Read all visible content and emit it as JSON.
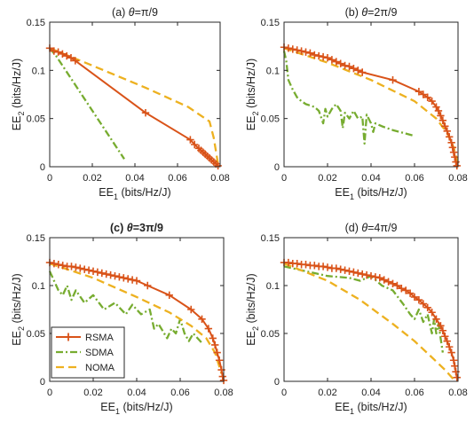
{
  "figure": {
    "legend": {
      "placement": "panel (c), lower-left",
      "entries": [
        {
          "name": "RSMA",
          "color": "#d95319",
          "style": "solid-plus"
        },
        {
          "name": "SDMA",
          "color": "#77ac30",
          "style": "dash-dot"
        },
        {
          "name": "NOMA",
          "color": "#edb120",
          "style": "dashed"
        }
      ]
    }
  },
  "chart_data": [
    {
      "type": "line",
      "title_prefix": "(a) ",
      "title_theta": "θ",
      "title_suffix": "=π/9",
      "title_bold": false,
      "xlabel_main": "EE",
      "xlabel_sub": "1",
      "xlabel_unit": " (bits/Hz/J)",
      "ylabel_main": "EE",
      "ylabel_sub": "2",
      "ylabel_unit": " (bits/Hz/J)",
      "xlim": [
        0,
        0.08
      ],
      "ylim": [
        0,
        0.15
      ],
      "xticks": [
        0,
        0.02,
        0.04,
        0.06,
        0.08
      ],
      "xtick_labels": [
        "0",
        "0.02",
        "0.04",
        "0.06",
        "0.08"
      ],
      "yticks": [
        0,
        0.05,
        0.1,
        0.15
      ],
      "ytick_labels": [
        "0",
        "0.05",
        "0.1",
        "0.15"
      ],
      "series": [
        {
          "name": "SDMA",
          "x": [
            0,
            0.003,
            0.035
          ],
          "y": [
            0.123,
            0.115,
            0.008
          ]
        },
        {
          "name": "NOMA",
          "x": [
            0,
            0.02,
            0.045,
            0.065,
            0.075,
            0.077,
            0.079
          ],
          "y": [
            0.123,
            0.105,
            0.082,
            0.062,
            0.047,
            0.03,
            0.003
          ]
        },
        {
          "name": "RSMA",
          "x": [
            0,
            0.002,
            0.004,
            0.006,
            0.008,
            0.01,
            0.012,
            0.045,
            0.066,
            0.068,
            0.07,
            0.071,
            0.072,
            0.073,
            0.074,
            0.075,
            0.076,
            0.077,
            0.078,
            0.079
          ],
          "y": [
            0.123,
            0.12,
            0.119,
            0.117,
            0.115,
            0.113,
            0.11,
            0.056,
            0.028,
            0.023,
            0.019,
            0.017,
            0.015,
            0.013,
            0.011,
            0.009,
            0.007,
            0.005,
            0.003,
            0.001
          ]
        }
      ]
    },
    {
      "type": "line",
      "title_prefix": "(b) ",
      "title_theta": "θ",
      "title_suffix": "=2π/9",
      "title_bold": false,
      "xlabel_main": "EE",
      "xlabel_sub": "1",
      "xlabel_unit": " (bits/Hz/J)",
      "ylabel_main": "EE",
      "ylabel_sub": "2",
      "ylabel_unit": " (bits/Hz/J)",
      "xlim": [
        0,
        0.08
      ],
      "ylim": [
        0,
        0.15
      ],
      "xticks": [
        0,
        0.02,
        0.04,
        0.06,
        0.08
      ],
      "xtick_labels": [
        "0",
        "0.02",
        "0.04",
        "0.06",
        "0.08"
      ],
      "yticks": [
        0,
        0.05,
        0.1,
        0.15
      ],
      "ytick_labels": [
        "0",
        "0.05",
        "0.1",
        "0.15"
      ],
      "series": [
        {
          "name": "SDMA",
          "x": [
            0,
            0.001,
            0.002,
            0.004,
            0.006,
            0.008,
            0.01,
            0.014,
            0.016,
            0.018,
            0.019,
            0.02,
            0.022,
            0.024,
            0.026,
            0.027,
            0.028,
            0.03,
            0.032,
            0.034,
            0.036,
            0.037,
            0.038,
            0.04,
            0.041,
            0.042,
            0.045,
            0.05,
            0.055,
            0.06
          ],
          "y": [
            0.12,
            0.11,
            0.09,
            0.08,
            0.072,
            0.068,
            0.065,
            0.062,
            0.058,
            0.045,
            0.06,
            0.052,
            0.06,
            0.065,
            0.058,
            0.04,
            0.056,
            0.05,
            0.058,
            0.05,
            0.052,
            0.024,
            0.054,
            0.045,
            0.036,
            0.045,
            0.042,
            0.038,
            0.035,
            0.032
          ]
        },
        {
          "name": "NOMA",
          "x": [
            0,
            0.02,
            0.04,
            0.06,
            0.07,
            0.075,
            0.078,
            0.08
          ],
          "y": [
            0.123,
            0.108,
            0.09,
            0.068,
            0.05,
            0.035,
            0.02,
            0.003
          ]
        },
        {
          "name": "RSMA",
          "x": [
            0,
            0.002,
            0.004,
            0.006,
            0.008,
            0.01,
            0.012,
            0.014,
            0.016,
            0.018,
            0.02,
            0.022,
            0.024,
            0.026,
            0.028,
            0.03,
            0.032,
            0.034,
            0.036,
            0.05,
            0.062,
            0.064,
            0.066,
            0.068,
            0.07,
            0.071,
            0.072,
            0.073,
            0.074,
            0.075,
            0.076,
            0.077,
            0.0775,
            0.078,
            0.0785,
            0.079,
            0.0795
          ],
          "y": [
            0.124,
            0.123,
            0.122,
            0.121,
            0.12,
            0.119,
            0.118,
            0.116,
            0.115,
            0.114,
            0.113,
            0.111,
            0.109,
            0.107,
            0.105,
            0.104,
            0.102,
            0.1,
            0.098,
            0.09,
            0.078,
            0.075,
            0.072,
            0.068,
            0.062,
            0.058,
            0.053,
            0.048,
            0.042,
            0.037,
            0.031,
            0.025,
            0.02,
            0.015,
            0.01,
            0.005,
            0.001
          ]
        }
      ]
    },
    {
      "type": "line",
      "title_prefix": "(c) ",
      "title_theta": "θ",
      "title_suffix": "=3π/9",
      "title_bold": true,
      "xlabel_main": "EE",
      "xlabel_sub": "1",
      "xlabel_unit": " (bits/Hz/J)",
      "ylabel_main": "EE",
      "ylabel_sub": "2",
      "ylabel_unit": " (bits/Hz/J)",
      "xlim": [
        0,
        0.08
      ],
      "ylim": [
        0,
        0.15
      ],
      "xticks": [
        0,
        0.02,
        0.04,
        0.06,
        0.08
      ],
      "xtick_labels": [
        "0",
        "0.02",
        "0.04",
        "0.06",
        "0.08"
      ],
      "yticks": [
        0,
        0.05,
        0.1,
        0.15
      ],
      "ytick_labels": [
        "0",
        "0.05",
        "0.1",
        "0.15"
      ],
      "series": [
        {
          "name": "SDMA",
          "x": [
            0,
            0.002,
            0.004,
            0.006,
            0.008,
            0.01,
            0.012,
            0.016,
            0.02,
            0.025,
            0.03,
            0.035,
            0.038,
            0.042,
            0.046,
            0.048,
            0.05,
            0.054,
            0.056,
            0.058,
            0.06,
            0.062,
            0.064,
            0.066,
            0.068,
            0.07
          ],
          "y": [
            0.115,
            0.105,
            0.095,
            0.09,
            0.1,
            0.085,
            0.095,
            0.082,
            0.09,
            0.075,
            0.082,
            0.07,
            0.08,
            0.07,
            0.075,
            0.055,
            0.06,
            0.045,
            0.055,
            0.05,
            0.065,
            0.05,
            0.042,
            0.05,
            0.045,
            0.04
          ]
        },
        {
          "name": "NOMA",
          "x": [
            0,
            0.02,
            0.04,
            0.055,
            0.065,
            0.072,
            0.076,
            0.079
          ],
          "y": [
            0.123,
            0.108,
            0.088,
            0.072,
            0.058,
            0.045,
            0.03,
            0.008
          ]
        },
        {
          "name": "RSMA",
          "x": [
            0,
            0.002,
            0.004,
            0.006,
            0.008,
            0.01,
            0.012,
            0.014,
            0.016,
            0.018,
            0.02,
            0.022,
            0.024,
            0.026,
            0.028,
            0.03,
            0.032,
            0.034,
            0.036,
            0.038,
            0.04,
            0.045,
            0.055,
            0.065,
            0.07,
            0.073,
            0.075,
            0.076,
            0.077,
            0.078,
            0.079,
            0.0795,
            0.08
          ],
          "y": [
            0.124,
            0.123,
            0.122,
            0.121,
            0.12,
            0.12,
            0.119,
            0.118,
            0.117,
            0.116,
            0.115,
            0.114,
            0.113,
            0.112,
            0.111,
            0.11,
            0.109,
            0.108,
            0.107,
            0.106,
            0.105,
            0.1,
            0.09,
            0.075,
            0.065,
            0.055,
            0.045,
            0.038,
            0.03,
            0.022,
            0.012,
            0.005,
            0.001
          ]
        }
      ]
    },
    {
      "type": "line",
      "title_prefix": "(d) ",
      "title_theta": "θ",
      "title_suffix": "=4π/9",
      "title_bold": false,
      "xlabel_main": "EE",
      "xlabel_sub": "1",
      "xlabel_unit": " (bits/Hz/J)",
      "ylabel_main": "EE",
      "ylabel_sub": "2",
      "ylabel_unit": " (bits/Hz/J)",
      "xlim": [
        0,
        0.08
      ],
      "ylim": [
        0,
        0.15
      ],
      "xticks": [
        0,
        0.02,
        0.04,
        0.06,
        0.08
      ],
      "xtick_labels": [
        "0",
        "0.02",
        "0.04",
        "0.06",
        "0.08"
      ],
      "yticks": [
        0,
        0.05,
        0.1,
        0.15
      ],
      "ytick_labels": [
        "0",
        "0.05",
        "0.1",
        "0.15"
      ],
      "series": [
        {
          "name": "SDMA",
          "x": [
            0,
            0.01,
            0.02,
            0.03,
            0.035,
            0.04,
            0.045,
            0.05,
            0.055,
            0.058,
            0.06,
            0.062,
            0.064,
            0.066,
            0.068,
            0.069,
            0.07,
            0.071,
            0.072,
            0.073
          ],
          "y": [
            0.12,
            0.115,
            0.11,
            0.108,
            0.105,
            0.11,
            0.1,
            0.095,
            0.08,
            0.07,
            0.065,
            0.075,
            0.062,
            0.07,
            0.05,
            0.065,
            0.05,
            0.06,
            0.045,
            0.03
          ]
        },
        {
          "name": "NOMA",
          "x": [
            0,
            0.02,
            0.035,
            0.05,
            0.06,
            0.068,
            0.074,
            0.078
          ],
          "y": [
            0.123,
            0.105,
            0.085,
            0.06,
            0.042,
            0.025,
            0.012,
            0.002
          ]
        },
        {
          "name": "RSMA",
          "x": [
            0,
            0.002,
            0.004,
            0.006,
            0.008,
            0.01,
            0.012,
            0.014,
            0.016,
            0.018,
            0.02,
            0.022,
            0.024,
            0.026,
            0.028,
            0.03,
            0.032,
            0.034,
            0.036,
            0.038,
            0.04,
            0.042,
            0.044,
            0.046,
            0.048,
            0.05,
            0.052,
            0.054,
            0.056,
            0.058,
            0.06,
            0.062,
            0.064,
            0.066,
            0.068,
            0.07,
            0.072,
            0.073,
            0.074,
            0.075,
            0.076,
            0.077,
            0.078,
            0.0785,
            0.079,
            0.0795
          ],
          "y": [
            0.124,
            0.124,
            0.123,
            0.123,
            0.122,
            0.122,
            0.121,
            0.121,
            0.12,
            0.12,
            0.119,
            0.118,
            0.118,
            0.117,
            0.116,
            0.115,
            0.114,
            0.113,
            0.112,
            0.111,
            0.11,
            0.109,
            0.108,
            0.106,
            0.104,
            0.102,
            0.1,
            0.097,
            0.095,
            0.092,
            0.088,
            0.085,
            0.081,
            0.077,
            0.072,
            0.065,
            0.058,
            0.053,
            0.047,
            0.042,
            0.036,
            0.03,
            0.022,
            0.016,
            0.01,
            0.004
          ]
        }
      ]
    }
  ]
}
